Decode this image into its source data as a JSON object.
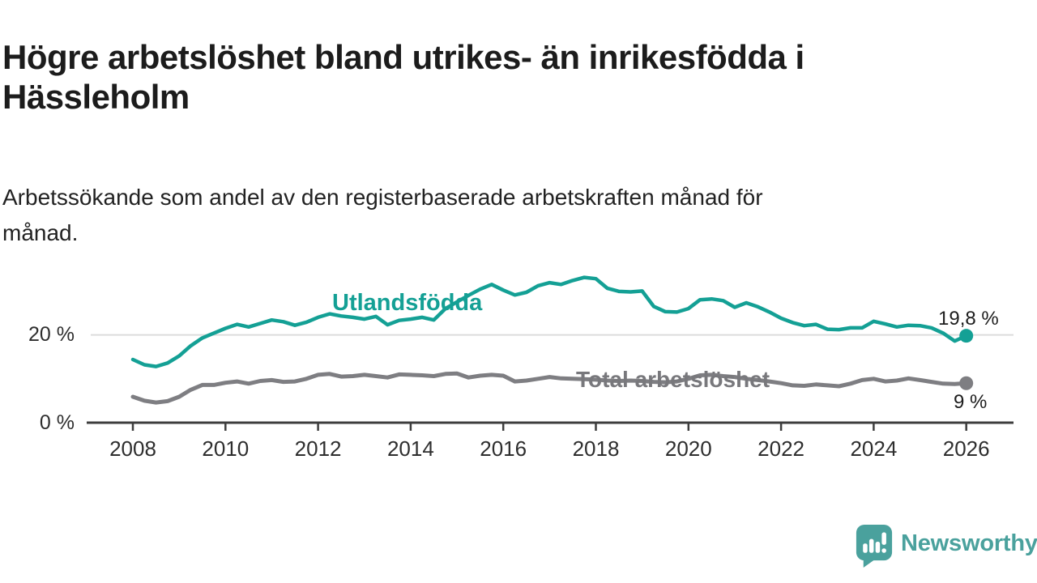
{
  "header": {
    "title_line1": "Högre arbetslöshet bland utrikes- än inrikesfödda i",
    "title_line2": "Hässleholm",
    "subtitle_line1": "Arbetssökande som andel av den registerbaserade arbetskraften månad för",
    "subtitle_line2": "månad."
  },
  "chart_data": {
    "type": "line",
    "title": "Högre arbetslöshet bland utrikes- än inrikesfödda i Hässleholm",
    "subtitle": "Arbetssökande som andel av den registerbaserade arbetskraften månad för månad.",
    "unit": "%",
    "grid": "horizontal gridline at 20 % only",
    "legend_position": "inline labels on lines",
    "xlim": [
      2007.0,
      2027.0
    ],
    "ylim": [
      0,
      36.5
    ],
    "x_ticks": [
      2008,
      2010,
      2012,
      2014,
      2016,
      2018,
      2020,
      2022,
      2024,
      2026
    ],
    "y_ticks": [
      {
        "value": 0,
        "label": "0 %"
      },
      {
        "value": 20,
        "label": "20 %"
      }
    ],
    "x": [
      2008,
      2008.25,
      2008.5,
      2008.75,
      2009,
      2009.25,
      2009.5,
      2009.75,
      2010,
      2010.25,
      2010.5,
      2010.75,
      2011,
      2011.25,
      2011.5,
      2011.75,
      2012,
      2012.25,
      2012.5,
      2012.75,
      2013,
      2013.25,
      2013.5,
      2013.75,
      2014,
      2014.25,
      2014.5,
      2014.75,
      2015,
      2015.25,
      2015.5,
      2015.75,
      2016,
      2016.25,
      2016.5,
      2016.75,
      2017,
      2017.25,
      2017.5,
      2017.75,
      2018,
      2018.25,
      2018.5,
      2018.75,
      2019,
      2019.25,
      2019.5,
      2019.75,
      2020,
      2020.25,
      2020.5,
      2020.75,
      2021,
      2021.25,
      2021.5,
      2021.75,
      2022,
      2022.25,
      2022.5,
      2022.75,
      2023,
      2023.25,
      2023.5,
      2023.75,
      2024,
      2024.25,
      2024.5,
      2024.75,
      2025,
      2025.25,
      2025.5,
      2025.75,
      2026
    ],
    "series": [
      {
        "name": "Utlandsfödda",
        "color": "#14a095",
        "end_label": "19,8 %",
        "end_value": 19.8,
        "values": [
          14.4,
          13.2,
          12.8,
          13.6,
          15.2,
          17.5,
          19.3,
          20.4,
          21.5,
          22.4,
          21.8,
          22.6,
          23.4,
          23.0,
          22.2,
          22.9,
          24.0,
          24.8,
          24.3,
          24.0,
          23.6,
          24.2,
          22.3,
          23.3,
          23.6,
          24.0,
          23.4,
          26.0,
          27.5,
          29.0,
          30.4,
          31.5,
          30.2,
          29.1,
          29.7,
          31.2,
          31.9,
          31.5,
          32.4,
          33.1,
          32.8,
          30.6,
          29.9,
          29.8,
          30.0,
          26.5,
          25.3,
          25.2,
          26.0,
          28.0,
          28.2,
          27.8,
          26.3,
          27.3,
          26.4,
          25.2,
          23.8,
          22.8,
          22.1,
          22.4,
          21.3,
          21.2,
          21.6,
          21.6,
          23.1,
          22.5,
          21.8,
          22.2,
          22.1,
          21.6,
          20.4,
          18.6,
          19.8
        ]
      },
      {
        "name": "Total arbetslöshet",
        "color": "#7e7e82",
        "end_label": "9 %",
        "end_value": 9,
        "values": [
          5.9,
          5.0,
          4.6,
          4.9,
          5.9,
          7.5,
          8.6,
          8.6,
          9.1,
          9.4,
          8.9,
          9.5,
          9.7,
          9.3,
          9.4,
          10.0,
          10.9,
          11.1,
          10.5,
          10.6,
          10.9,
          10.6,
          10.3,
          11.0,
          10.9,
          10.8,
          10.6,
          11.1,
          11.2,
          10.3,
          10.7,
          10.9,
          10.7,
          9.4,
          9.6,
          10.0,
          10.4,
          10.1,
          10.0,
          9.9,
          9.8,
          9.6,
          9.5,
          9.6,
          9.5,
          9.3,
          9.2,
          9.4,
          10.0,
          10.8,
          10.9,
          10.6,
          10.4,
          10.0,
          9.7,
          9.4,
          9.0,
          8.5,
          8.4,
          8.7,
          8.5,
          8.3,
          8.9,
          9.7,
          10.0,
          9.4,
          9.6,
          10.1,
          9.7,
          9.3,
          8.9,
          8.8,
          9.0
        ]
      }
    ]
  },
  "colors": {
    "accent_teal": "#14a095",
    "series_gray": "#7e7e82",
    "axis": "#3d3d3d",
    "gridline": "#dcdcdc",
    "logo_teal": "#4aa19d"
  },
  "logo": {
    "text": "Newsworthy",
    "icon": "speech-bubble-bar-chart-exclamation"
  }
}
